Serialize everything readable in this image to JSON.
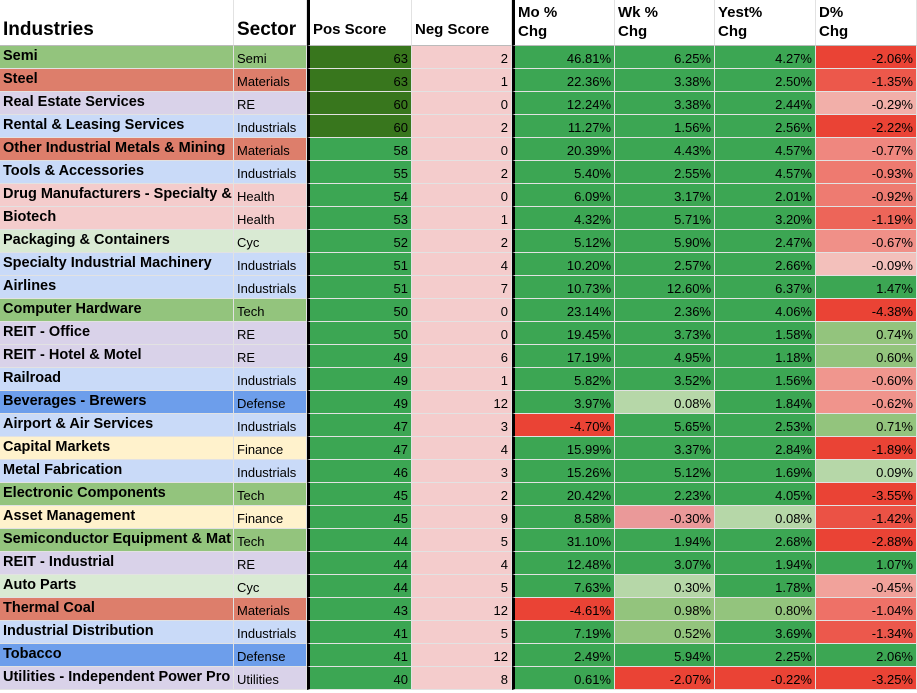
{
  "table": {
    "headers": [
      [
        "Industries"
      ],
      [
        "Sector"
      ],
      [
        "Pos Score"
      ],
      [
        "Neg Score"
      ],
      [
        "Mo %",
        "Chg"
      ],
      [
        "Wk %",
        "Chg"
      ],
      [
        "Yest%",
        "Chg"
      ],
      [
        "D%",
        "Chg"
      ]
    ],
    "sector_colors": {
      "Semi": "#93c47d",
      "Materials": "#dd7e6b",
      "RE": "#d9d2e9",
      "Industrials": "#c9daf8",
      "Health": "#f4cccc",
      "Cyc": "#d9ead3",
      "Tech": "#93c47d",
      "Defense": "#6d9eeb",
      "Finance": "#fff2cc",
      "Utilities": "#d9d2e9"
    },
    "rows": [
      [
        "Semi",
        "Semi",
        63,
        2,
        "46.81%",
        "6.25%",
        "4.27%",
        "-2.06%"
      ],
      [
        "Steel",
        "Materials",
        63,
        1,
        "22.36%",
        "3.38%",
        "2.50%",
        "-1.35%"
      ],
      [
        "Real Estate Services",
        "RE",
        60,
        0,
        "12.24%",
        "3.38%",
        "2.44%",
        "-0.29%"
      ],
      [
        "Rental & Leasing Services",
        "Industrials",
        60,
        2,
        "11.27%",
        "1.56%",
        "2.56%",
        "-2.22%"
      ],
      [
        "Other Industrial Metals & Mining",
        "Materials",
        58,
        0,
        "20.39%",
        "4.43%",
        "4.57%",
        "-0.77%"
      ],
      [
        "Tools & Accessories",
        "Industrials",
        55,
        2,
        "5.40%",
        "2.55%",
        "4.57%",
        "-0.93%"
      ],
      [
        "Drug Manufacturers - Specialty &",
        "Health",
        54,
        0,
        "6.09%",
        "3.17%",
        "2.01%",
        "-0.92%"
      ],
      [
        "Biotech",
        "Health",
        53,
        1,
        "4.32%",
        "5.71%",
        "3.20%",
        "-1.19%"
      ],
      [
        "Packaging & Containers",
        "Cyc",
        52,
        2,
        "5.12%",
        "5.90%",
        "2.47%",
        "-0.67%"
      ],
      [
        "Specialty Industrial Machinery",
        "Industrials",
        51,
        4,
        "10.20%",
        "2.57%",
        "2.66%",
        "-0.09%"
      ],
      [
        "Airlines",
        "Industrials",
        51,
        7,
        "10.73%",
        "12.60%",
        "6.37%",
        "1.47%"
      ],
      [
        "Computer Hardware",
        "Tech",
        50,
        0,
        "23.14%",
        "2.36%",
        "4.06%",
        "-4.38%"
      ],
      [
        "REIT - Office",
        "RE",
        50,
        0,
        "19.45%",
        "3.73%",
        "1.58%",
        "0.74%"
      ],
      [
        "REIT - Hotel & Motel",
        "RE",
        49,
        6,
        "17.19%",
        "4.95%",
        "1.18%",
        "0.60%"
      ],
      [
        "Railroad",
        "Industrials",
        49,
        1,
        "5.82%",
        "3.52%",
        "1.56%",
        "-0.60%"
      ],
      [
        "Beverages - Brewers",
        "Defense",
        49,
        12,
        "3.97%",
        "0.08%",
        "1.84%",
        "-0.62%"
      ],
      [
        "Airport & Air Services",
        "Industrials",
        47,
        3,
        "-4.70%",
        "5.65%",
        "2.53%",
        "0.71%"
      ],
      [
        "Capital Markets",
        "Finance",
        47,
        4,
        "15.99%",
        "3.37%",
        "2.84%",
        "-1.89%"
      ],
      [
        "Metal Fabrication",
        "Industrials",
        46,
        3,
        "15.26%",
        "5.12%",
        "1.69%",
        "0.09%"
      ],
      [
        "Electronic Components",
        "Tech",
        45,
        2,
        "20.42%",
        "2.23%",
        "4.05%",
        "-3.55%"
      ],
      [
        "Asset Management",
        "Finance",
        45,
        9,
        "8.58%",
        "-0.30%",
        "0.08%",
        "-1.42%"
      ],
      [
        "Semiconductor Equipment & Mat",
        "Tech",
        44,
        5,
        "31.10%",
        "1.94%",
        "2.68%",
        "-2.88%"
      ],
      [
        "REIT - Industrial",
        "RE",
        44,
        4,
        "12.48%",
        "3.07%",
        "1.94%",
        "1.07%"
      ],
      [
        "Auto Parts",
        "Cyc",
        44,
        5,
        "7.63%",
        "0.30%",
        "1.78%",
        "-0.45%"
      ],
      [
        "Thermal Coal",
        "Materials",
        43,
        12,
        "-4.61%",
        "0.98%",
        "0.80%",
        "-1.04%"
      ],
      [
        "Industrial Distribution",
        "Industrials",
        41,
        5,
        "7.19%",
        "0.52%",
        "3.69%",
        "-1.34%"
      ],
      [
        "Tobacco",
        "Defense",
        41,
        12,
        "2.49%",
        "5.94%",
        "2.25%",
        "2.06%"
      ],
      [
        "Utilities - Independent Power Pro",
        "Utilities",
        40,
        8,
        "0.61%",
        "-2.07%",
        "-0.22%",
        "-3.25%"
      ]
    ]
  }
}
